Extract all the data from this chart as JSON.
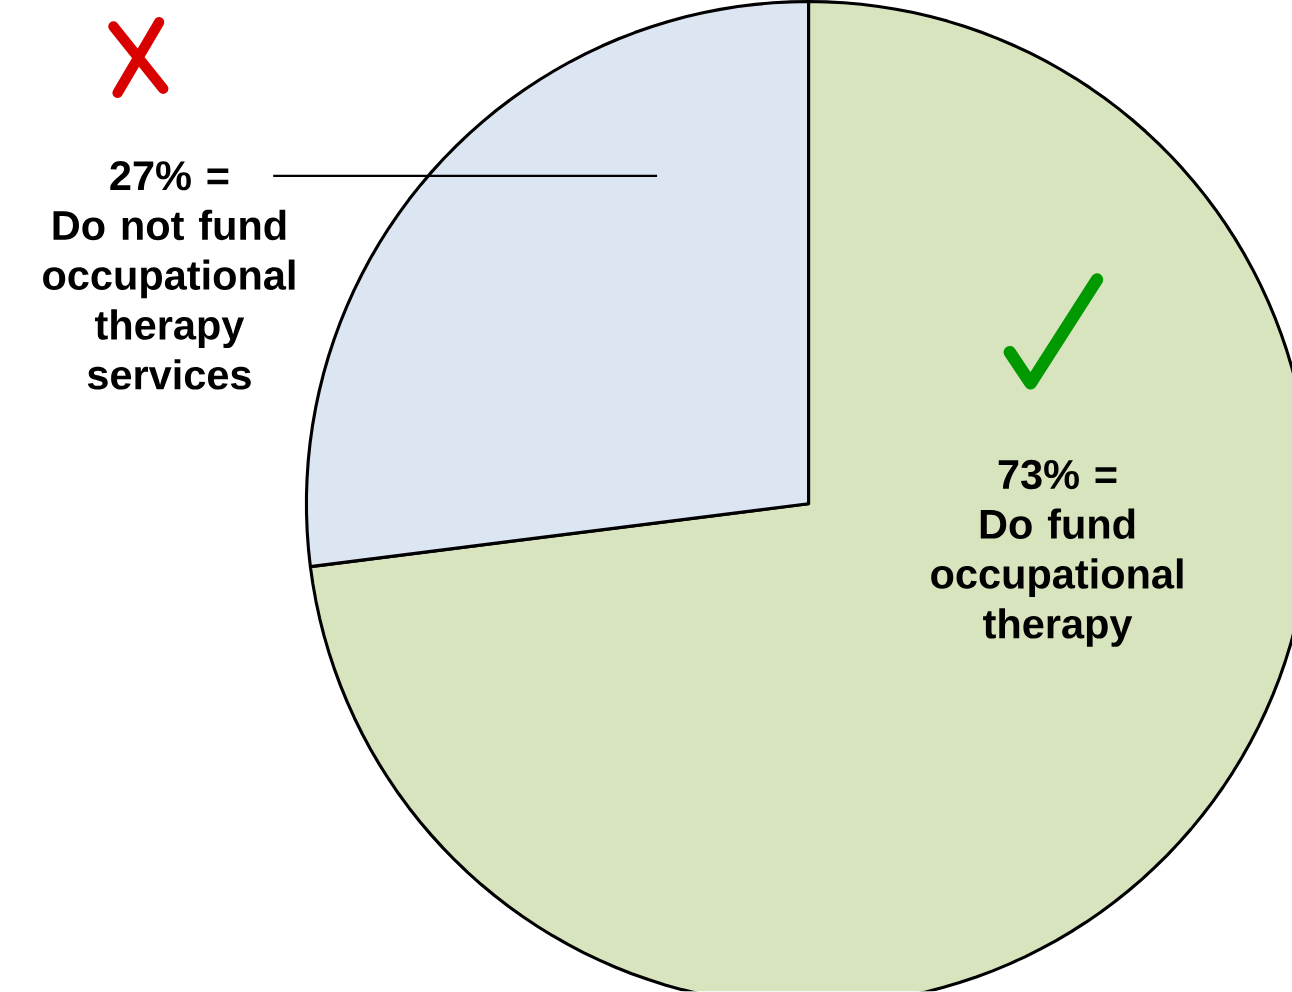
{
  "chart_data": {
    "type": "pie",
    "categories": [
      "Do not fund occupational therapy services",
      "Do fund occupational therapy"
    ],
    "values": [
      27,
      73
    ],
    "colors": [
      "#dce6f2",
      "#d7e4bd"
    ],
    "value_labels": [
      "27% =",
      "73% ="
    ]
  }
}
